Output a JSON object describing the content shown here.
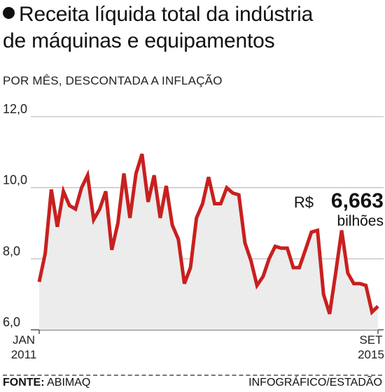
{
  "title_line1": "Receita líquida total da indústria",
  "title_line2": "de máquinas e equipamentos",
  "subtitle": "POR MÊS, DESCONTADA A INFLAÇÃO",
  "footer": {
    "source_label": "FONTE:",
    "source_name": "ABIMAQ",
    "credit": "INFOGRÁFICO/ESTADÃO"
  },
  "chart_data": {
    "type": "area",
    "y_ticks": [
      "12,0",
      "10,0",
      "8,0",
      "6,0"
    ],
    "ylim": [
      6,
      12
    ],
    "x_tick_labels": [
      {
        "month": "JAN",
        "year": "2011"
      },
      {
        "month": "SET",
        "year": "2015"
      }
    ],
    "x_start": "2011-01",
    "x_end": "2015-09",
    "annotation": {
      "prefix": "R$",
      "value": "6,663",
      "unit": "bilhões"
    },
    "grid": true,
    "line_color": "#c8201f",
    "fill_color": "#ececec",
    "values": [
      7.35,
      8.15,
      9.95,
      8.9,
      9.9,
      9.5,
      9.4,
      10.0,
      10.35,
      9.1,
      9.4,
      9.9,
      8.25,
      9.0,
      10.4,
      9.15,
      10.4,
      10.95,
      9.6,
      10.35,
      9.15,
      10.05,
      8.95,
      8.55,
      7.3,
      7.75,
      9.15,
      9.55,
      10.3,
      9.55,
      9.55,
      10.0,
      9.85,
      9.8,
      8.45,
      7.95,
      7.25,
      7.5,
      8.0,
      8.35,
      8.3,
      8.3,
      7.75,
      7.75,
      8.25,
      8.75,
      8.8,
      7.0,
      6.45,
      7.6,
      8.8,
      7.6,
      7.3,
      7.3,
      7.25,
      6.5,
      6.663
    ]
  }
}
